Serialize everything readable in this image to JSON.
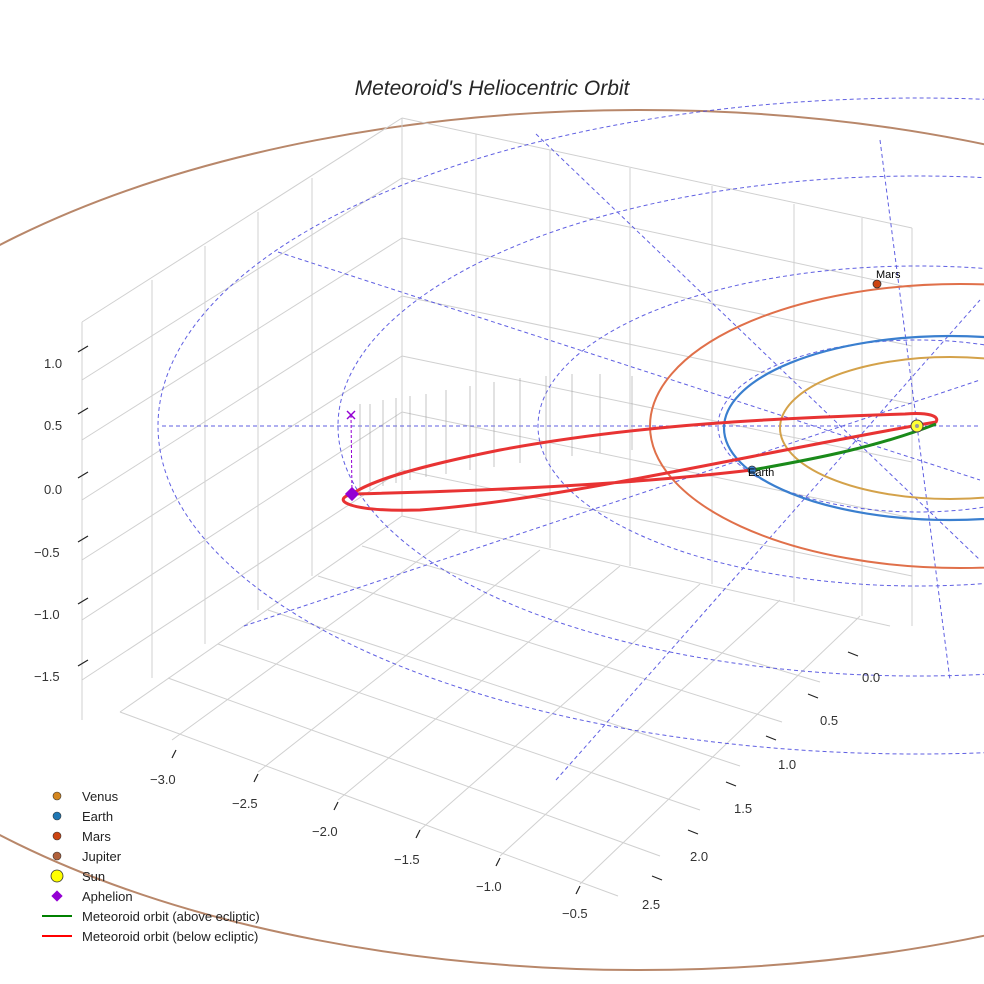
{
  "chart_data": {
    "type": "3d-orbit",
    "title": "Meteoroid's Heliocentric Orbit",
    "axes": {
      "x_ticks": [
        "−3.0",
        "−2.5",
        "−2.0",
        "−1.5",
        "−1.0",
        "−0.5"
      ],
      "y_ticks": [
        "0.0",
        "0.5",
        "1.0",
        "1.5",
        "2.0",
        "2.5"
      ],
      "z_ticks": [
        "1.0",
        "0.5",
        "0.0",
        "−0.5",
        "−1.0",
        "−1.5"
      ],
      "x_range": [
        -3.2,
        -0.4
      ],
      "y_range": [
        -0.2,
        2.6
      ],
      "z_range": [
        -1.7,
        1.2
      ]
    },
    "planets": [
      {
        "name": "Venus",
        "orbit_radius_au": 0.72,
        "color": "#d4a24a"
      },
      {
        "name": "Earth",
        "orbit_radius_au": 1.0,
        "color": "#3a7fcf",
        "label": "Earth"
      },
      {
        "name": "Mars",
        "orbit_radius_au": 1.52,
        "color": "#e0704a",
        "label": "Mars"
      },
      {
        "name": "Jupiter",
        "orbit_radius_au": 5.2,
        "color": "#b8876a"
      }
    ],
    "sun": {
      "name": "Sun",
      "color": "#ffff33"
    },
    "aphelion": {
      "name": "Aphelion",
      "color": "#9400d3"
    },
    "meteoroid_orbit": {
      "above_ecliptic_color": "#1a8a1a",
      "below_ecliptic_color": "#e83333"
    },
    "legend": [
      {
        "label": "Venus",
        "symbol": "circle",
        "color": "#d4861f"
      },
      {
        "label": "Earth",
        "symbol": "circle",
        "color": "#1f77b4"
      },
      {
        "label": "Mars",
        "symbol": "circle",
        "color": "#cc4411"
      },
      {
        "label": "Jupiter",
        "symbol": "circle",
        "color": "#b0603a"
      },
      {
        "label": "Sun",
        "symbol": "sun",
        "color": "#ffff00"
      },
      {
        "label": "Aphelion",
        "symbol": "diamond",
        "color": "#9400d3"
      },
      {
        "label": "Meteoroid orbit (above ecliptic)",
        "symbol": "line",
        "color": "#008000"
      },
      {
        "label": "Meteoroid orbit (below ecliptic)",
        "symbol": "line",
        "color": "#ff0000"
      }
    ]
  }
}
